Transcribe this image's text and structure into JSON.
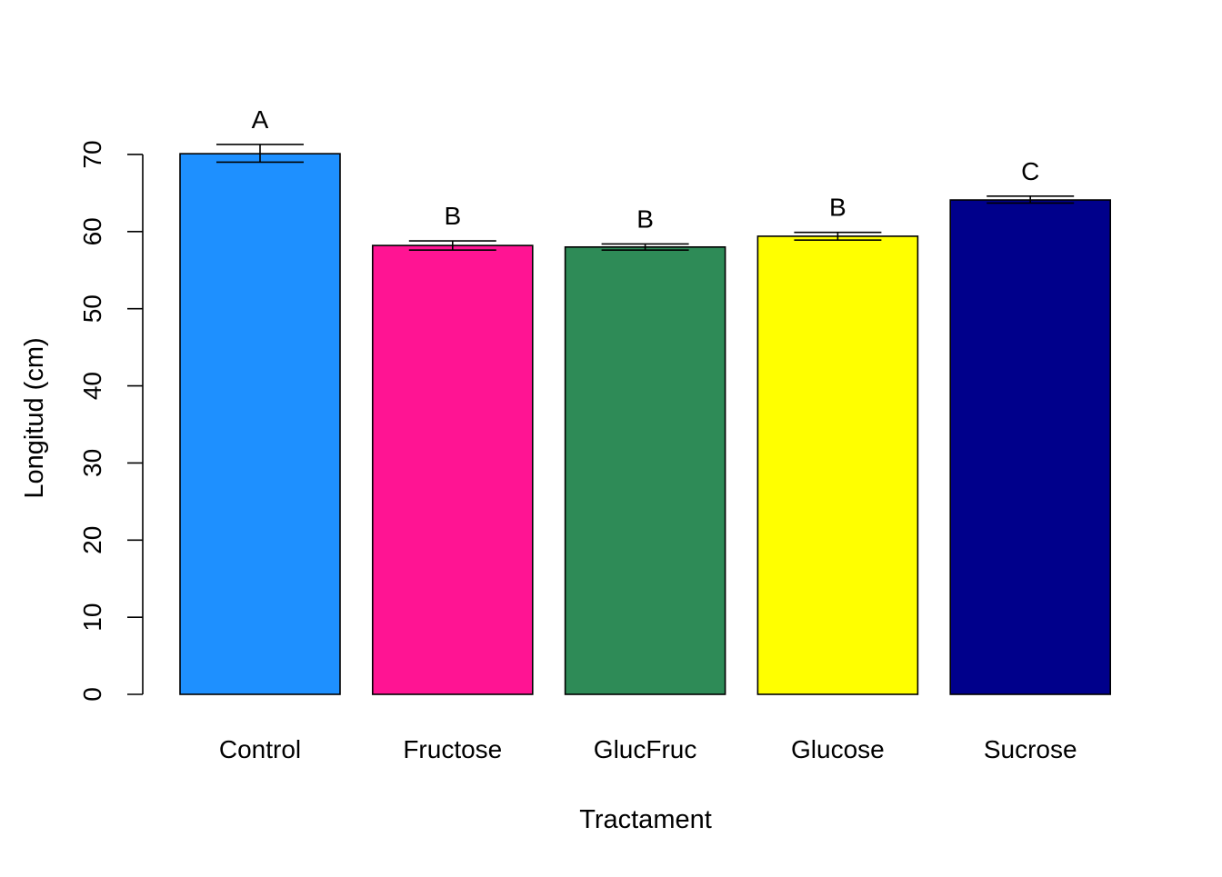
{
  "chart_data": {
    "type": "bar",
    "title": "",
    "xlabel": "Tractament",
    "ylabel": "Longitud (cm)",
    "ylim": [
      0,
      70
    ],
    "yticks": [
      0,
      10,
      20,
      30,
      40,
      50,
      60,
      70
    ],
    "grid": false,
    "legend": "none",
    "categories": [
      "Control",
      "Fructose",
      "GlucFruc",
      "Glucose",
      "Sucrose"
    ],
    "values": [
      70.1,
      58.2,
      58.0,
      59.4,
      64.1
    ],
    "error_bars": [
      {
        "lower": 69.0,
        "upper": 71.3
      },
      {
        "lower": 57.6,
        "upper": 58.8
      },
      {
        "lower": 57.6,
        "upper": 58.4
      },
      {
        "lower": 58.9,
        "upper": 59.9
      },
      {
        "lower": 63.7,
        "upper": 64.6
      }
    ],
    "group_letters": [
      "A",
      "B",
      "B",
      "B",
      "C"
    ],
    "colors": [
      "#1E90FF",
      "#FF1493",
      "#2E8B57",
      "#FFFF00",
      "#00008B"
    ]
  }
}
